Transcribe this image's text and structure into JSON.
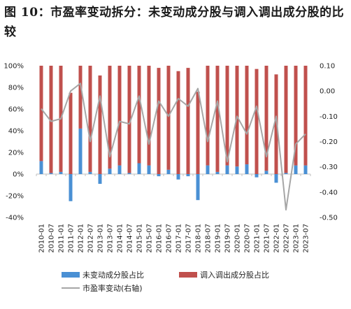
{
  "chart_data": {
    "type": "bar",
    "title": "图 10：市盈率变动拆分：未变动成分股与调入调出成分股的比较",
    "categories": [
      "2010-01",
      "2010-07",
      "2011-01",
      "2011-07",
      "2012-01",
      "2012-07",
      "2013-01",
      "2013-07",
      "2014-01",
      "2014-07",
      "2015-01",
      "2015-07",
      "2016-01",
      "2016-07",
      "2017-01",
      "2017-07",
      "2018-01",
      "2018-07",
      "2019-01",
      "2019-07",
      "2020-01",
      "2020-07",
      "2021-01",
      "2021-07",
      "2022-01",
      "2022-07",
      "2023-01",
      "2023-07"
    ],
    "left_axis": {
      "min": -0.4,
      "max": 1.0,
      "ticks": [
        "-40%",
        "-20%",
        "0%",
        "20%",
        "40%",
        "60%",
        "80%",
        "100%"
      ]
    },
    "right_axis": {
      "min": -0.5,
      "max": 0.1,
      "ticks": [
        "-0.50",
        "-0.40",
        "-0.30",
        "-0.20",
        "-0.10",
        "0.00",
        "0.10"
      ]
    },
    "series": [
      {
        "name": "未变动成分股占比",
        "axis": "left",
        "kind": "bar",
        "color": "#4a90d4",
        "values": [
          0.12,
          0.01,
          0.02,
          -0.25,
          0.42,
          0.02,
          -0.09,
          0.05,
          0.08,
          0.01,
          0.1,
          0.08,
          -0.02,
          0.04,
          -0.05,
          -0.02,
          -0.24,
          0.08,
          0.02,
          0.08,
          0.07,
          0.09,
          -0.03,
          0.03,
          -0.08,
          0.01,
          0.08,
          0.08
        ]
      },
      {
        "name": "调入调出成分股占比",
        "axis": "left",
        "kind": "bar",
        "color": "#c0504d",
        "values": [
          0.88,
          0.99,
          0.98,
          0.75,
          0.58,
          0.98,
          0.91,
          0.95,
          0.92,
          0.99,
          0.9,
          0.92,
          0.98,
          0.96,
          0.95,
          0.98,
          0.76,
          0.92,
          0.98,
          0.92,
          0.93,
          0.91,
          0.97,
          0.97,
          0.92,
          0.99,
          0.92,
          0.92
        ]
      },
      {
        "name": "市盈率变动(右轴)",
        "axis": "right",
        "kind": "line",
        "color": "#a6a6a6",
        "values": [
          -0.07,
          -0.12,
          -0.11,
          0.0,
          0.03,
          -0.2,
          -0.02,
          -0.26,
          -0.12,
          -0.13,
          -0.02,
          -0.21,
          -0.04,
          -0.1,
          -0.03,
          -0.06,
          0.01,
          -0.2,
          -0.04,
          -0.28,
          -0.1,
          -0.17,
          -0.06,
          -0.26,
          -0.1,
          -0.47,
          -0.21,
          -0.17
        ]
      }
    ],
    "legend_position": "bottom",
    "grid": false
  }
}
